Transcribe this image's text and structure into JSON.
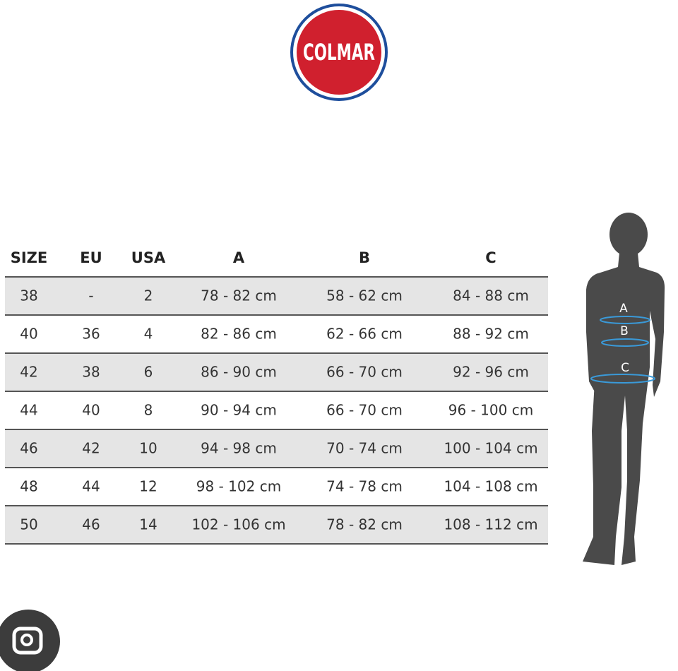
{
  "logo": {
    "text": "COLMAR"
  },
  "table": {
    "headers": [
      "SIZE",
      "EU",
      "USA",
      "A",
      "B",
      "C"
    ],
    "rows": [
      [
        "38",
        "-",
        "2",
        "78 - 82 cm",
        "58 - 62 cm",
        "84 - 88 cm"
      ],
      [
        "40",
        "36",
        "4",
        "82 - 86 cm",
        "62 - 66 cm",
        "88 - 92 cm"
      ],
      [
        "42",
        "38",
        "6",
        "86 - 90 cm",
        "66 - 70 cm",
        "92 - 96 cm"
      ],
      [
        "44",
        "40",
        "8",
        "90 - 94 cm",
        "66 - 70 cm",
        "96 - 100 cm"
      ],
      [
        "46",
        "42",
        "10",
        "94 - 98 cm",
        "70 - 74 cm",
        "100 - 104 cm"
      ],
      [
        "48",
        "44",
        "12",
        "98 - 102 cm",
        "74 - 78 cm",
        "104 - 108 cm"
      ],
      [
        "50",
        "46",
        "14",
        "102 - 106 cm",
        "78 - 82 cm",
        "108 - 112 cm"
      ]
    ]
  },
  "figure": {
    "labels": [
      "A",
      "B",
      "C"
    ]
  }
}
